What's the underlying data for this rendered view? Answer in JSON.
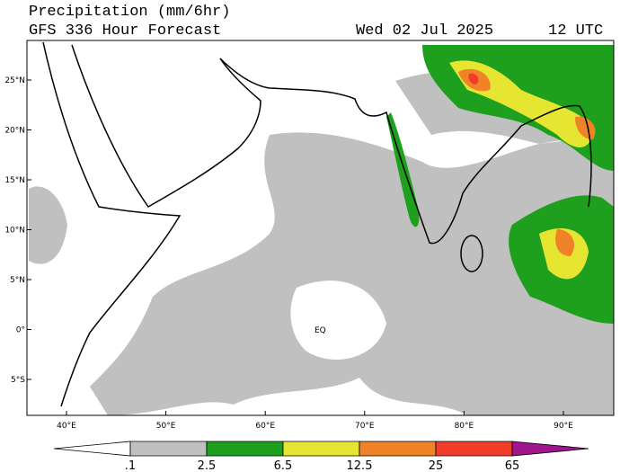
{
  "header": {
    "title": "Precipitation (mm/6hr)",
    "subtitle": "GFS 336 Hour Forecast",
    "date": "Wed 02 Jul 2025",
    "time": "12 UTC"
  },
  "map": {
    "lat_labels": [
      "25°N",
      "20°N",
      "15°N",
      "10°N",
      "5°N",
      "0°",
      "5°S"
    ],
    "lon_labels": [
      "40°E",
      "50°E",
      "60°E",
      "70°E",
      "80°E",
      "90°E"
    ],
    "annotation": "EQ"
  },
  "colorbar": {
    "labels": [
      ".1",
      "2.5",
      "6.5",
      "12.5",
      "25",
      "65"
    ],
    "colors": [
      "#ffffff",
      "#c0c0c0",
      "#1ea01e",
      "#e6e632",
      "#f08228",
      "#f03c28",
      "#a0148c"
    ]
  }
}
